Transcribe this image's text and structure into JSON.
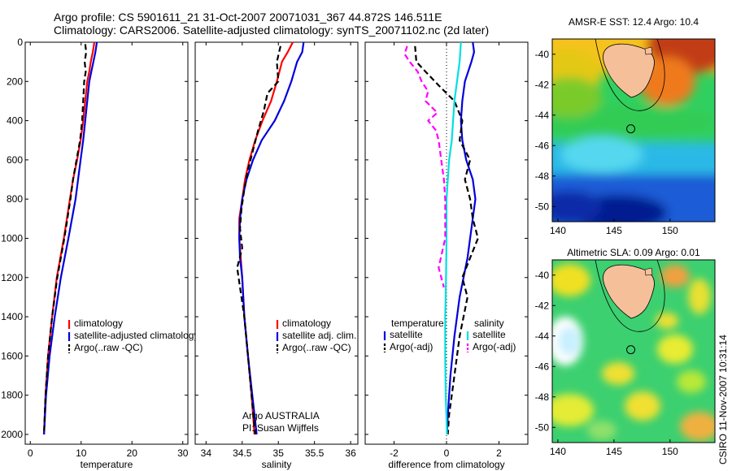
{
  "header": {
    "line1": "Argo profile: CS 5901611_21 31-Oct-2007 20071031_367 44.872S 146.511E",
    "line2": "Climatology: CARS2006. Satellite-adjusted climatology: synTS_20071102.nc (2d later)"
  },
  "footer": {
    "stamp": "CSIRO 11-Nov-2007 10:31:14"
  },
  "colors": {
    "climatology": "#ff0000",
    "satellite": "#0000dd",
    "argo": "#000000",
    "sat_salinity": "#00e0e0",
    "argo_salinity": "#ff00ff",
    "land": "#f5bf9a"
  },
  "chart_data": [
    {
      "id": "temperature",
      "type": "line",
      "xlabel": "temperature",
      "ylabel": "",
      "xlim": [
        -1,
        31
      ],
      "ylim": [
        2050,
        0
      ],
      "xticks": [
        0,
        10,
        20,
        30
      ],
      "yticks": [
        0,
        200,
        400,
        600,
        800,
        1000,
        1200,
        1400,
        1600,
        1800,
        2000
      ],
      "legend_position": "lower-right",
      "legend": [
        "climatology",
        "satellite-adjusted climatology",
        "Argo(..raw -QC)"
      ],
      "series": [
        {
          "name": "climatology",
          "style": "solid",
          "color": "#ff0000",
          "points": [
            [
              12.6,
              0
            ],
            [
              12.3,
              50
            ],
            [
              11.9,
              100
            ],
            [
              11.6,
              150
            ],
            [
              11.2,
              200
            ],
            [
              10.8,
              300
            ],
            [
              10.4,
              400
            ],
            [
              9.9,
              500
            ],
            [
              9.2,
              600
            ],
            [
              8.4,
              700
            ],
            [
              7.8,
              800
            ],
            [
              6.6,
              1000
            ],
            [
              5.2,
              1200
            ],
            [
              4.3,
              1400
            ],
            [
              3.5,
              1600
            ],
            [
              3.0,
              1800
            ],
            [
              2.7,
              2000
            ]
          ]
        },
        {
          "name": "satellite-adjusted climatology",
          "style": "solid",
          "color": "#0000dd",
          "points": [
            [
              13.1,
              0
            ],
            [
              12.8,
              50
            ],
            [
              12.4,
              100
            ],
            [
              12.0,
              150
            ],
            [
              11.6,
              200
            ],
            [
              11.2,
              300
            ],
            [
              10.8,
              400
            ],
            [
              10.4,
              500
            ],
            [
              9.9,
              600
            ],
            [
              9.4,
              700
            ],
            [
              8.9,
              800
            ],
            [
              7.5,
              1000
            ],
            [
              6.0,
              1200
            ],
            [
              4.8,
              1400
            ],
            [
              3.8,
              1600
            ],
            [
              3.1,
              1800
            ],
            [
              2.7,
              2000
            ]
          ]
        },
        {
          "name": "Argo(..raw -QC)",
          "style": "dashed",
          "color": "#000000",
          "points": [
            [
              10.8,
              10
            ],
            [
              11.0,
              50
            ],
            [
              10.7,
              100
            ],
            [
              10.9,
              150
            ],
            [
              10.6,
              200
            ],
            [
              10.4,
              300
            ],
            [
              10.2,
              400
            ],
            [
              9.8,
              500
            ],
            [
              9.1,
              600
            ],
            [
              8.4,
              700
            ],
            [
              7.9,
              800
            ],
            [
              6.7,
              1000
            ],
            [
              5.3,
              1200
            ],
            [
              4.3,
              1400
            ],
            [
              3.5,
              1600
            ],
            [
              3.0,
              1800
            ],
            [
              2.7,
              2000
            ]
          ]
        }
      ]
    },
    {
      "id": "salinity",
      "type": "line",
      "xlabel": "salinity",
      "ylabel": "",
      "xlim": [
        33.85,
        36.1
      ],
      "ylim": [
        2050,
        0
      ],
      "xticks": [
        34,
        34.5,
        35,
        35.5,
        36
      ],
      "yticks": [
        0,
        200,
        400,
        600,
        800,
        1000,
        1200,
        1400,
        1600,
        1800,
        2000
      ],
      "legend_position": "lower-right",
      "legend": [
        "climatology",
        "satellite adj. clim.",
        "Argo(..raw -QC)"
      ],
      "annotation": [
        "Argo AUSTRALIA",
        "PI: Susan Wijffels"
      ],
      "series": [
        {
          "name": "climatology",
          "style": "solid",
          "color": "#ff0000",
          "points": [
            [
              35.2,
              0
            ],
            [
              35.13,
              50
            ],
            [
              35.05,
              100
            ],
            [
              34.98,
              200
            ],
            [
              34.9,
              300
            ],
            [
              34.78,
              400
            ],
            [
              34.68,
              500
            ],
            [
              34.6,
              600
            ],
            [
              34.54,
              700
            ],
            [
              34.5,
              800
            ],
            [
              34.46,
              900
            ],
            [
              34.46,
              1000
            ],
            [
              34.48,
              1100
            ],
            [
              34.5,
              1200
            ],
            [
              34.53,
              1400
            ],
            [
              34.58,
              1600
            ],
            [
              34.63,
              1800
            ],
            [
              34.67,
              2000
            ]
          ]
        },
        {
          "name": "satellite adj. clim.",
          "style": "solid",
          "color": "#0000dd",
          "points": [
            [
              35.35,
              0
            ],
            [
              35.33,
              50
            ],
            [
              35.26,
              100
            ],
            [
              35.18,
              200
            ],
            [
              35.08,
              300
            ],
            [
              34.95,
              400
            ],
            [
              34.77,
              500
            ],
            [
              34.65,
              600
            ],
            [
              34.56,
              700
            ],
            [
              34.5,
              800
            ],
            [
              34.47,
              900
            ],
            [
              34.46,
              1000
            ],
            [
              34.47,
              1100
            ],
            [
              34.5,
              1200
            ],
            [
              34.53,
              1400
            ],
            [
              34.58,
              1600
            ],
            [
              34.64,
              1800
            ],
            [
              34.7,
              2000
            ]
          ]
        },
        {
          "name": "Argo(..raw -QC)",
          "style": "dashed",
          "color": "#000000",
          "points": [
            [
              35.03,
              20
            ],
            [
              34.98,
              100
            ],
            [
              35.0,
              200
            ],
            [
              34.85,
              260
            ],
            [
              34.8,
              350
            ],
            [
              34.72,
              450
            ],
            [
              34.65,
              550
            ],
            [
              34.58,
              650
            ],
            [
              34.53,
              750
            ],
            [
              34.49,
              850
            ],
            [
              34.47,
              950
            ],
            [
              34.5,
              1050
            ],
            [
              34.43,
              1150
            ],
            [
              34.47,
              1250
            ],
            [
              34.53,
              1400
            ],
            [
              34.58,
              1600
            ],
            [
              34.63,
              1800
            ],
            [
              34.68,
              2000
            ]
          ]
        }
      ]
    },
    {
      "id": "difference",
      "type": "line",
      "xlabel": "difference from climatology",
      "ylabel": "",
      "xlim": [
        -3.1,
        3.1
      ],
      "ylim": [
        2050,
        0
      ],
      "xticks": [
        -2,
        0,
        2
      ],
      "yticks": [
        0,
        200,
        400,
        600,
        800,
        1000,
        1200,
        1400,
        1600,
        1800,
        2000
      ],
      "legend_position": "lower-center",
      "legend_titles": [
        "temperature",
        "salinity"
      ],
      "legend": [
        "satellite",
        "Argo(-adj)",
        "satellite",
        "Argo(-adj)"
      ],
      "series": [
        {
          "name": "satellite",
          "group": "temperature",
          "style": "solid",
          "color": "#0000dd",
          "points": [
            [
              1.0,
              0
            ],
            [
              1.05,
              50
            ],
            [
              0.95,
              100
            ],
            [
              0.7,
              200
            ],
            [
              0.6,
              300
            ],
            [
              0.55,
              400
            ],
            [
              0.6,
              500
            ],
            [
              0.75,
              600
            ],
            [
              1.0,
              700
            ],
            [
              1.1,
              800
            ],
            [
              0.9,
              1000
            ],
            [
              0.8,
              1100
            ],
            [
              0.5,
              1300
            ],
            [
              0.3,
              1500
            ],
            [
              0.15,
              1700
            ],
            [
              0.05,
              1900
            ],
            [
              0.02,
              2000
            ]
          ]
        },
        {
          "name": "Argo(-adj)",
          "group": "temperature",
          "style": "dashed",
          "color": "#000000",
          "points": [
            [
              -1.2,
              20
            ],
            [
              -1.15,
              100
            ],
            [
              -0.8,
              150
            ],
            [
              -0.3,
              220
            ],
            [
              0.3,
              300
            ],
            [
              0.6,
              400
            ],
            [
              0.5,
              500
            ],
            [
              0.9,
              600
            ],
            [
              0.7,
              700
            ],
            [
              0.9,
              800
            ],
            [
              1.0,
              900
            ],
            [
              1.2,
              1000
            ],
            [
              0.9,
              1100
            ],
            [
              0.6,
              1200
            ],
            [
              0.8,
              1300
            ],
            [
              0.5,
              1500
            ],
            [
              0.3,
              1700
            ],
            [
              0.1,
              1900
            ],
            [
              0.05,
              2000
            ]
          ]
        },
        {
          "name": "satellite",
          "group": "salinity",
          "style": "solid",
          "color": "#00e0e0",
          "points": [
            [
              0.55,
              0
            ],
            [
              0.5,
              100
            ],
            [
              0.4,
              200
            ],
            [
              0.3,
              300
            ],
            [
              0.25,
              400
            ],
            [
              0.2,
              500
            ],
            [
              0.1,
              600
            ],
            [
              0.05,
              700
            ],
            [
              0.0,
              800
            ],
            [
              0.0,
              1000
            ],
            [
              -0.02,
              1200
            ],
            [
              -0.05,
              1400
            ],
            [
              -0.05,
              1600
            ],
            [
              -0.03,
              1800
            ],
            [
              0.02,
              2000
            ]
          ]
        },
        {
          "name": "Argo(-adj)",
          "group": "salinity",
          "style": "dashed",
          "color": "#ff00ff",
          "points": [
            [
              -1.5,
              20
            ],
            [
              -1.6,
              60
            ],
            [
              -1.4,
              100
            ],
            [
              -1.1,
              150
            ],
            [
              -0.95,
              200
            ],
            [
              -0.7,
              250
            ],
            [
              -0.8,
              300
            ],
            [
              -0.35,
              360
            ],
            [
              -0.7,
              400
            ],
            [
              -0.4,
              450
            ],
            [
              -0.3,
              500
            ],
            [
              -0.2,
              600
            ],
            [
              -0.1,
              700
            ],
            [
              -0.05,
              800
            ],
            [
              -0.05,
              1000
            ],
            [
              -0.3,
              1150
            ],
            [
              -0.1,
              1250
            ]
          ]
        }
      ]
    },
    {
      "id": "sst-map",
      "type": "heatmap",
      "title": "AMSR-E SST: 12.4 Argo: 10.4",
      "xlim": [
        139.5,
        154
      ],
      "ylim": [
        -51,
        -39
      ],
      "xticks": [
        140,
        145,
        150
      ],
      "yticks": [
        -40,
        -42,
        -44,
        -46,
        -48,
        -50
      ],
      "marker": {
        "lon": 146.5,
        "lat": -44.9
      }
    },
    {
      "id": "sla-map",
      "type": "heatmap",
      "title": "Altimetric SLA: 0.09 Argo: 0.01",
      "xlim": [
        139.5,
        154
      ],
      "ylim": [
        -51,
        -39
      ],
      "xticks": [
        140,
        145,
        150
      ],
      "yticks": [
        -40,
        -42,
        -44,
        -46,
        -48,
        -50
      ],
      "marker": {
        "lon": 146.5,
        "lat": -44.9
      }
    }
  ]
}
